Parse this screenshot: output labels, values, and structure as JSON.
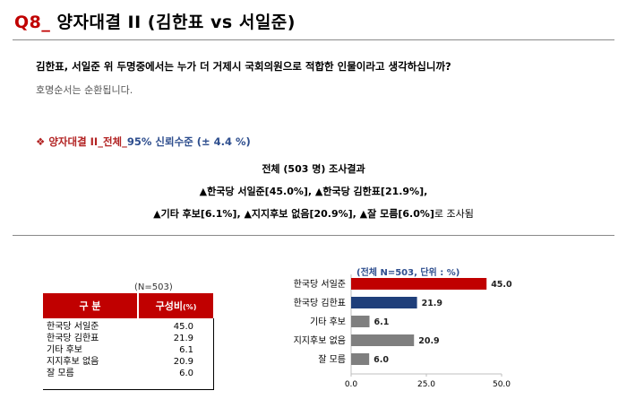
{
  "title": {
    "qnum": "Q8_",
    "text": "양자대결 II (김한표 vs 서일준)"
  },
  "question": "김한표, 서일준 위 두명중에서는 누가 더 거제시 국회의원으로 적합한 인물이라고 생각하십니까?",
  "note": "호명순서는 순환됩니다.",
  "subhead": {
    "bullet": "❖",
    "red": "양자대결 II_전체_",
    "blue": "95% 신뢰수준 (± 4.4 %)"
  },
  "summary": {
    "line1": "전체 (503 명) 조사결과",
    "line2": "▲한국당 서일준[45.0%], ▲한국당 김한표[21.9%],",
    "line3": "▲기타 후보[6.1%], ▲지지후보 없음[20.9%], ▲잘 모름[6.0%]",
    "line3_tail": "로 조사됨"
  },
  "table": {
    "n_label": "(N=503)",
    "col1": "구 분",
    "col2": "구성비",
    "col2_unit": "(%)",
    "rows": [
      {
        "label": "한국당 서일준",
        "value": "45.0"
      },
      {
        "label": "한국당 김한표",
        "value": "21.9"
      },
      {
        "label": "기타 후보",
        "value": "6.1"
      },
      {
        "label": "지지후보 없음",
        "value": "20.9"
      },
      {
        "label": "잘 모름",
        "value": "6.0"
      }
    ]
  },
  "chart_data": {
    "type": "bar",
    "orientation": "horizontal",
    "title": "(전체 N=503, 단위 : %)",
    "categories": [
      "한국당 서일준",
      "한국당 김한표",
      "기타 후보",
      "지지후보 없음",
      "잘 모름"
    ],
    "values": [
      45.0,
      21.9,
      6.1,
      20.9,
      6.0
    ],
    "value_labels": [
      "45.0",
      "21.9",
      "6.1",
      "20.9",
      "6.0"
    ],
    "bar_colors": [
      "#c00000",
      "#1f3f7a",
      "#7f7f7f",
      "#7f7f7f",
      "#7f7f7f"
    ],
    "xlim": [
      0,
      50
    ],
    "xticks": [
      "0.0",
      "25.0",
      "50.0"
    ],
    "grid": false
  }
}
